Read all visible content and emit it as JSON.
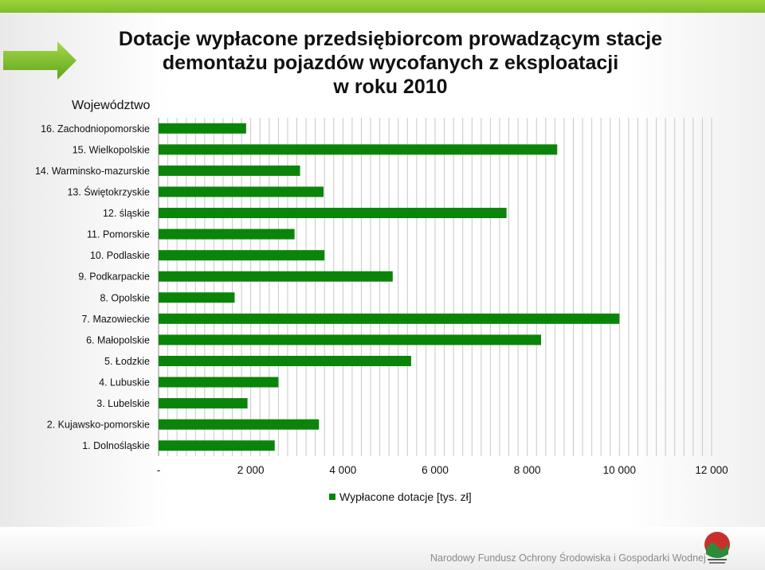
{
  "title_lines": [
    "Dotacje wypłacone przedsiębiorcom prowadzącym stacje",
    "demontażu pojazdów wycofanych z eksploatacji",
    "w roku 2010"
  ],
  "footer": "Narodowy Fundusz Ochrony Środowiska i Gospodarki Wodnej",
  "colors": {
    "bar": "#0a850a",
    "accent": "#8cc63f",
    "grid": "#c8c8c8"
  },
  "chart_data": {
    "type": "bar",
    "orientation": "horizontal",
    "ylabel": "Województwo",
    "xlim": [
      0,
      12000
    ],
    "grid": true,
    "legend_position": "bottom",
    "x_ticks": [
      "-",
      "2 000",
      "4 000",
      "6 000",
      "8 000",
      "10 000",
      "12 000"
    ],
    "categories": [
      "16. Zachodniopomorskie",
      "15. Wielkopolskie",
      "14. Warminsko-mazurskie",
      "13. Świętokrzyskie",
      "12. śląskie",
      "11. Pomorskie",
      "10. Podlaskie",
      "9. Podkarpackie",
      "8. Opolskie",
      "7. Mazowieckie",
      "6. Małopolskie",
      "5. Łodzkie",
      "4. Lubuskie",
      "3. Lubelskie",
      "2. Kujawsko-pomorskie",
      "1. Dolnośląskie"
    ],
    "series": [
      {
        "name": "Wypłacone dotacje [tys. zł]",
        "values": [
          1900,
          8650,
          3070,
          3580,
          7550,
          2950,
          3600,
          5080,
          1650,
          10000,
          8300,
          5480,
          2600,
          1930,
          3480,
          2520
        ]
      }
    ]
  }
}
